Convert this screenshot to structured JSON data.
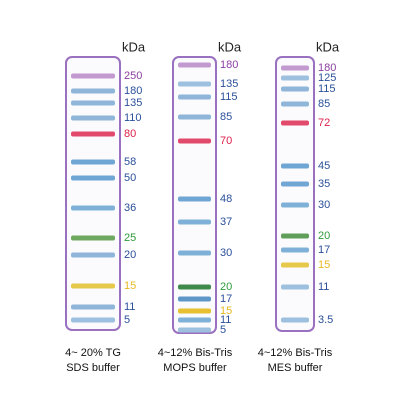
{
  "lanes": [
    {
      "unit": "kDa",
      "caption": [
        "4~ 20% TG",
        "SDS buffer"
      ],
      "bands": [
        {
          "label": 250,
          "color": "#8b3fa0",
          "band_color": "#c29ad0"
        },
        {
          "label": 180,
          "color": "#2a4f9a",
          "band_color": "#8fb6d9"
        },
        {
          "label": 135,
          "color": "#2a4f9a",
          "band_color": "#8fb6d9"
        },
        {
          "label": 110,
          "color": "#2a4f9a",
          "band_color": "#8fb6d9"
        },
        {
          "label": 80,
          "color": "#e0204a",
          "band_color": "#e24a6c"
        },
        {
          "label": 58,
          "color": "#2a4f9a",
          "band_color": "#6fa6d4"
        },
        {
          "label": 50,
          "color": "#2a4f9a",
          "band_color": "#6fa6d4"
        },
        {
          "label": 36,
          "color": "#2a4f9a",
          "band_color": "#7fb0d8"
        },
        {
          "label": 25,
          "color": "#2f9a3a",
          "band_color": "#6fa860"
        },
        {
          "label": 20,
          "color": "#2a4f9a",
          "band_color": "#8fb6d9"
        },
        {
          "label": 15,
          "color": "#e8b820",
          "band_color": "#e6c84a"
        },
        {
          "label": 11,
          "color": "#2a4f9a",
          "band_color": "#8fb6d9"
        },
        {
          "label": 5,
          "color": "#2a4f9a",
          "band_color": "#9cc0dd"
        }
      ]
    },
    {
      "unit": "kDa",
      "caption": [
        "4~12% Bis-Tris",
        "MOPS buffer"
      ],
      "bands": [
        {
          "label": 180,
          "color": "#8b3fa0",
          "band_color": "#c29ad0"
        },
        {
          "label": 135,
          "color": "#2a4f9a",
          "band_color": "#9cc0dd"
        },
        {
          "label": 115,
          "color": "#2a4f9a",
          "band_color": "#8fb6d9"
        },
        {
          "label": 85,
          "color": "#2a4f9a",
          "band_color": "#8fb6d9"
        },
        {
          "label": 70,
          "color": "#e0204a",
          "band_color": "#e24a6c"
        },
        {
          "label": 48,
          "color": "#2a4f9a",
          "band_color": "#6fa6d4"
        },
        {
          "label": 37,
          "color": "#2a4f9a",
          "band_color": "#7fb0d8"
        },
        {
          "label": 30,
          "color": "#2a4f9a",
          "band_color": "#7fb0d8"
        },
        {
          "label": 20,
          "color": "#2f9a3a",
          "band_color": "#3f8a4a"
        },
        {
          "label": 17,
          "color": "#2a4f9a",
          "band_color": "#5f96c8"
        },
        {
          "label": 15,
          "color": "#e8b820",
          "band_color": "#e6c030"
        },
        {
          "label": 11,
          "color": "#2a4f9a",
          "band_color": "#7fb0d8"
        },
        {
          "label": 5,
          "color": "#2a4f9a",
          "band_color": "#9cc0dd"
        }
      ]
    },
    {
      "unit": "kDa",
      "caption": [
        "4~12% Bis-Tris",
        "MES buffer"
      ],
      "bands": [
        {
          "label": 180,
          "color": "#8b3fa0",
          "band_color": "#c29ad0"
        },
        {
          "label": 125,
          "color": "#2a4f9a",
          "band_color": "#9cc0dd"
        },
        {
          "label": 115,
          "color": "#2a4f9a",
          "band_color": "#8fb6d9"
        },
        {
          "label": 85,
          "color": "#2a4f9a",
          "band_color": "#8fb6d9"
        },
        {
          "label": 72,
          "color": "#e0204a",
          "band_color": "#e24a6c"
        },
        {
          "label": 45,
          "color": "#2a4f9a",
          "band_color": "#6fa6d4"
        },
        {
          "label": 35,
          "color": "#2a4f9a",
          "band_color": "#6fa6d4"
        },
        {
          "label": 30,
          "color": "#2a4f9a",
          "band_color": "#7fb0d8"
        },
        {
          "label": 20,
          "color": "#2f9a3a",
          "band_color": "#5f9f5a"
        },
        {
          "label": 17,
          "color": "#2a4f9a",
          "band_color": "#7fb0d8"
        },
        {
          "label": 15,
          "color": "#e8b820",
          "band_color": "#e6c84a"
        },
        {
          "label": 11,
          "color": "#2a4f9a",
          "band_color": "#9cc0dd"
        },
        {
          "label": 3.5,
          "color": "#2a4f9a",
          "band_color": "#9cc0dd"
        }
      ]
    }
  ]
}
